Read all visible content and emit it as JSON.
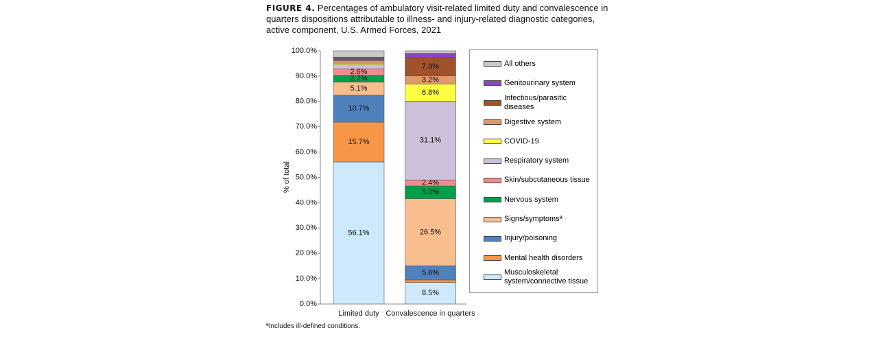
{
  "chart_data": {
    "type": "stacked-bar",
    "figure_label": "FIGURE 4.",
    "title": "Percentages of ambulatory visit-related limited duty and convalescence in quarters dispositions attributable to illness- and injury-related diagnostic categories, active component, U.S. Armed Forces, 2021",
    "y_label": "% of total",
    "footnote": "ªIncludes ill-defined conditions.",
    "categories": [
      "Limited duty",
      "Convalescence in quarters"
    ],
    "ylim": [
      0,
      100
    ],
    "yticks": [
      {
        "value": 0,
        "label": "0.0%"
      },
      {
        "value": 10,
        "label": "10.0%"
      },
      {
        "value": 20,
        "label": "20.0%"
      },
      {
        "value": 30,
        "label": "30.0%"
      },
      {
        "value": 40,
        "label": "40.0%"
      },
      {
        "value": 50,
        "label": "50.0%"
      },
      {
        "value": 60,
        "label": "60.0%"
      },
      {
        "value": 70,
        "label": "70.0%"
      },
      {
        "value": 80,
        "label": "80.0%"
      },
      {
        "value": 90,
        "label": "90.0%"
      },
      {
        "value": 100,
        "label": "100.0%"
      }
    ],
    "series": [
      {
        "name": "Musculoskeletal system/connective tissue",
        "color": "#cde9fb",
        "label_color": "#111",
        "values": [
          56.1,
          8.5
        ],
        "value_labels": [
          "56.1%",
          "8.5%"
        ]
      },
      {
        "name": "Mental health disorders",
        "color": "#f79646",
        "label_color": "#111",
        "values": [
          15.7,
          1.0
        ],
        "value_labels": [
          "15.7%",
          null
        ]
      },
      {
        "name": "Injury/poisoning",
        "color": "#4f81bd",
        "label_color": "#fff",
        "values": [
          10.7,
          5.6
        ],
        "value_labels": [
          "10.7%",
          "5.6%"
        ]
      },
      {
        "name": "Signs/symptomsª",
        "color": "#f9be8e",
        "label_color": "#111",
        "values": [
          5.1,
          26.5
        ],
        "value_labels": [
          "5.1%",
          "26.5%"
        ]
      },
      {
        "name": "Nervous system",
        "color": "#00a04b",
        "label_color": "#fff",
        "values": [
          2.7,
          5.0
        ],
        "value_labels": [
          "2.7%",
          "5.0%"
        ]
      },
      {
        "name": "Skin/subcutaneous tissue",
        "color": "#f28b8e",
        "label_color": "#111",
        "values": [
          2.6,
          2.4
        ],
        "value_labels": [
          "2.6%",
          "2.4%"
        ]
      },
      {
        "name": "Respiratory system",
        "color": "#ccc0da",
        "label_color": "#111",
        "values": [
          1.6,
          31.1
        ],
        "value_labels": [
          null,
          "31.1%"
        ]
      },
      {
        "name": "COVID-19",
        "color": "#ffff44",
        "label_color": "#111",
        "values": [
          0.6,
          6.8
        ],
        "value_labels": [
          null,
          "6.8%"
        ]
      },
      {
        "name": "Digestive system",
        "color": "#e0996a",
        "label_color": "#111",
        "values": [
          1.0,
          3.2
        ],
        "value_labels": [
          null,
          "3.2%"
        ]
      },
      {
        "name": "Infectious/parasitic diseases",
        "color": "#a0522d",
        "label_color": "#fff",
        "values": [
          0.8,
          7.3
        ],
        "value_labels": [
          null,
          "7.3%"
        ]
      },
      {
        "name": "Genitourinary system",
        "color": "#8e44c4",
        "label_color": "#fff",
        "values": [
          0.6,
          1.6
        ],
        "value_labels": [
          null,
          null
        ]
      },
      {
        "name": "All others",
        "color": "#c9c9c9",
        "label_color": "#111",
        "values": [
          2.5,
          1.0
        ],
        "value_labels": [
          null,
          null
        ]
      }
    ]
  }
}
